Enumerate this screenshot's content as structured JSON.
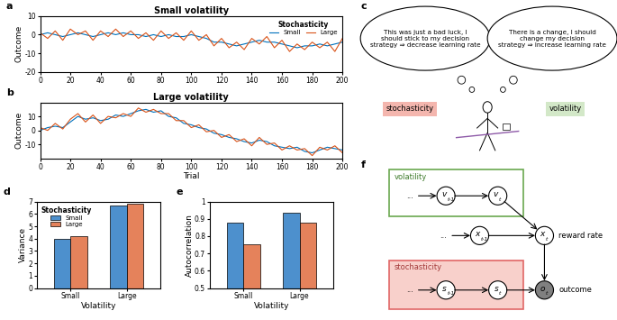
{
  "chart_data": [
    {
      "type": "line",
      "panel_label": "a",
      "title": "Small volatility",
      "ylabel": "Outcome",
      "x": [
        0,
        5,
        10,
        15,
        20,
        25,
        30,
        35,
        40,
        45,
        50,
        55,
        60,
        65,
        70,
        75,
        80,
        85,
        90,
        95,
        100,
        105,
        110,
        115,
        120,
        125,
        130,
        135,
        140,
        145,
        150,
        155,
        160,
        165,
        170,
        175,
        180,
        185,
        190,
        195,
        200
      ],
      "series": [
        {
          "name": "Small",
          "color": "#0072bd",
          "values": [
            0,
            1,
            0,
            -1,
            0,
            1,
            0,
            -1,
            0,
            1,
            0,
            1,
            0,
            0,
            -1,
            0,
            -1,
            0,
            -1,
            -1,
            0,
            -1,
            -2,
            -4,
            -4,
            -5,
            -6,
            -5,
            -4,
            -3,
            -4,
            -4,
            -5,
            -6,
            -7,
            -6,
            -6,
            -5,
            -6,
            -5,
            -4
          ]
        },
        {
          "name": "Large",
          "color": "#d95319",
          "values": [
            1,
            -2,
            2,
            -3,
            3,
            0,
            2,
            -3,
            2,
            -1,
            3,
            -1,
            2,
            -2,
            1,
            -3,
            2,
            -2,
            1,
            -3,
            2,
            -3,
            0,
            -6,
            -2,
            -7,
            -4,
            -8,
            -2,
            -5,
            -1,
            -7,
            -3,
            -9,
            -5,
            -8,
            -4,
            -7,
            -4,
            -9,
            -2
          ]
        }
      ],
      "xlim": [
        0,
        200
      ],
      "xticks": [
        0,
        20,
        40,
        60,
        80,
        100,
        120,
        140,
        160,
        180,
        200
      ],
      "ylim": [
        -20,
        10
      ],
      "yticks": [
        -20,
        -10,
        0,
        10
      ],
      "legend": "upper right",
      "legend_title": "Stochasticity"
    },
    {
      "type": "line",
      "panel_label": "b",
      "title": "Large volatility",
      "xlabel": "Trial",
      "ylabel": "Outcome",
      "x": [
        0,
        5,
        10,
        15,
        20,
        25,
        30,
        35,
        40,
        45,
        50,
        55,
        60,
        65,
        70,
        75,
        80,
        85,
        90,
        95,
        100,
        105,
        110,
        115,
        120,
        125,
        130,
        135,
        140,
        145,
        150,
        155,
        160,
        165,
        170,
        175,
        180,
        185,
        190,
        195,
        200
      ],
      "series": [
        {
          "name": "Small",
          "color": "#0072bd",
          "values": [
            0,
            2,
            3,
            2,
            6,
            10,
            8,
            9,
            7,
            8,
            11,
            10,
            12,
            14,
            15,
            13,
            14,
            10,
            9,
            5,
            4,
            2,
            1,
            -2,
            -3,
            -5,
            -6,
            -8,
            -9,
            -7,
            -8,
            -11,
            -12,
            -13,
            -12,
            -15,
            -16,
            -14,
            -12,
            -13,
            -14
          ]
        },
        {
          "name": "Large",
          "color": "#d95319",
          "values": [
            2,
            0,
            5,
            1,
            8,
            12,
            6,
            11,
            5,
            10,
            9,
            12,
            10,
            16,
            13,
            15,
            12,
            12,
            7,
            7,
            2,
            4,
            -1,
            0,
            -5,
            -3,
            -8,
            -6,
            -11,
            -5,
            -10,
            -9,
            -14,
            -11,
            -14,
            -13,
            -18,
            -12,
            -14,
            -11,
            -16
          ]
        }
      ],
      "xlim": [
        0,
        200
      ],
      "xticks": [
        0,
        20,
        40,
        60,
        80,
        100,
        120,
        140,
        160,
        180,
        200
      ],
      "ylim": [
        -20,
        20
      ],
      "yticks": [
        -10,
        0,
        10
      ]
    },
    {
      "type": "bar",
      "panel_label": "d",
      "xlabel": "Volatility",
      "ylabel": "Variance",
      "categories": [
        "Small",
        "Large"
      ],
      "series": [
        {
          "name": "Small",
          "color": "#4d90cd",
          "values": [
            3.95,
            6.7
          ]
        },
        {
          "name": "Large",
          "color": "#e5825b",
          "values": [
            4.2,
            6.85
          ]
        }
      ],
      "ylim": [
        0,
        7
      ],
      "yticks": [
        0,
        1,
        2,
        3,
        4,
        5,
        6,
        7
      ],
      "legend": "upper left",
      "legend_title": "Stochasticity"
    },
    {
      "type": "bar",
      "panel_label": "e",
      "xlabel": "Volatility",
      "ylabel": "Autocorrelation",
      "categories": [
        "Small",
        "Large"
      ],
      "series": [
        {
          "name": "Small",
          "color": "#4d90cd",
          "values": [
            0.88,
            0.935
          ]
        },
        {
          "name": "Large",
          "color": "#e5825b",
          "values": [
            0.755,
            0.88
          ]
        }
      ],
      "ylim": [
        0.5,
        1
      ],
      "yticks": [
        0.5,
        0.6,
        0.7,
        0.8,
        0.9,
        1
      ]
    }
  ],
  "diagram_c": {
    "panel_label": "c",
    "thoughts": [
      "This was just a bad luck, I\nshould stick to my decision\nstrategy ⇒ decrease learning rate",
      "There is a change, I should\nchange my decision\nstrategy ⇒ increase learning rate"
    ],
    "labels": [
      "stochasticity",
      "volatility"
    ]
  },
  "diagram_f": {
    "panel_label": "f",
    "volatility_label": "volatility",
    "stochasticity_label": "stochasticity",
    "nodes": [
      {
        "label": "v",
        "sub": "t-1"
      },
      {
        "label": "v",
        "sub": "t"
      },
      {
        "label": "x",
        "sub": "t-1"
      },
      {
        "label": "x",
        "sub": "t"
      },
      {
        "label": "s",
        "sub": "t-1"
      },
      {
        "label": "s",
        "sub": "t"
      },
      {
        "label": "o",
        "sub": "t"
      }
    ],
    "ellipsis": "...",
    "reward_label": "reward rate",
    "outcome_label": "outcome"
  }
}
